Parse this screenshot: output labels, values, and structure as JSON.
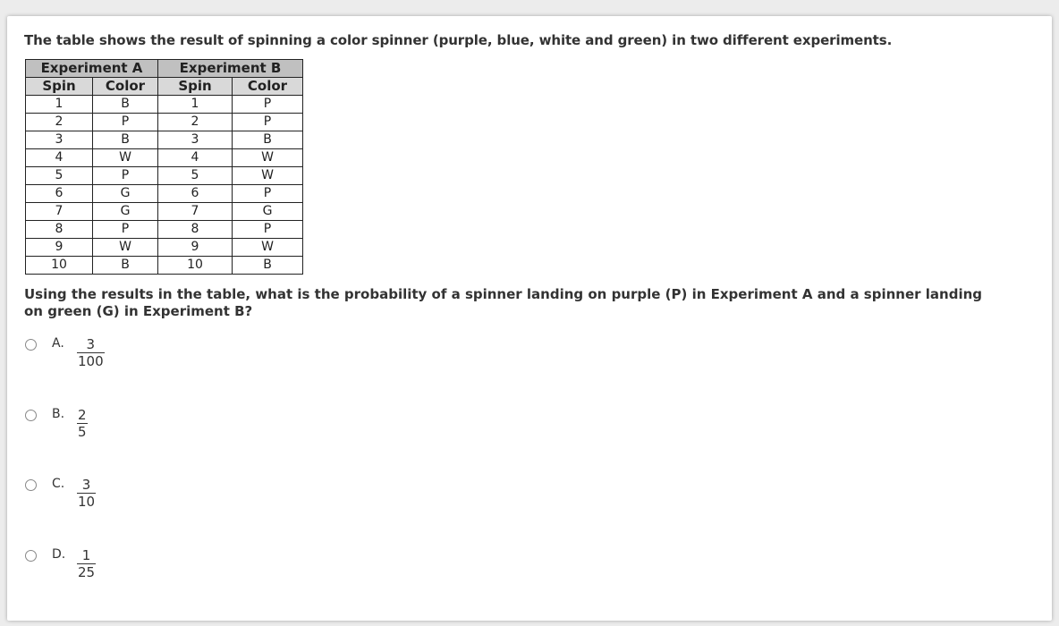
{
  "intro": "The table shows the result of spinning a color spinner (purple, blue, white and green) in two different experiments.",
  "table": {
    "groups": [
      "Experiment A",
      "Experiment B"
    ],
    "columns": [
      "Spin",
      "Color",
      "Spin",
      "Color"
    ],
    "rows": [
      [
        "1",
        "B",
        "1",
        "P"
      ],
      [
        "2",
        "P",
        "2",
        "P"
      ],
      [
        "3",
        "B",
        "3",
        "B"
      ],
      [
        "4",
        "W",
        "4",
        "W"
      ],
      [
        "5",
        "P",
        "5",
        "W"
      ],
      [
        "6",
        "G",
        "6",
        "P"
      ],
      [
        "7",
        "G",
        "7",
        "G"
      ],
      [
        "8",
        "P",
        "8",
        "P"
      ],
      [
        "9",
        "W",
        "9",
        "W"
      ],
      [
        "10",
        "B",
        "10",
        "B"
      ]
    ]
  },
  "question": "Using the results in the table, what is the probability of a spinner landing on purple (P) in Experiment A and a spinner landing on green (G) in Experiment B?",
  "options": [
    {
      "label": "A.",
      "num": "3",
      "den": "100"
    },
    {
      "label": "B.",
      "num": "2",
      "den": "5"
    },
    {
      "label": "C.",
      "num": "3",
      "den": "10"
    },
    {
      "label": "D.",
      "num": "1",
      "den": "25"
    }
  ]
}
